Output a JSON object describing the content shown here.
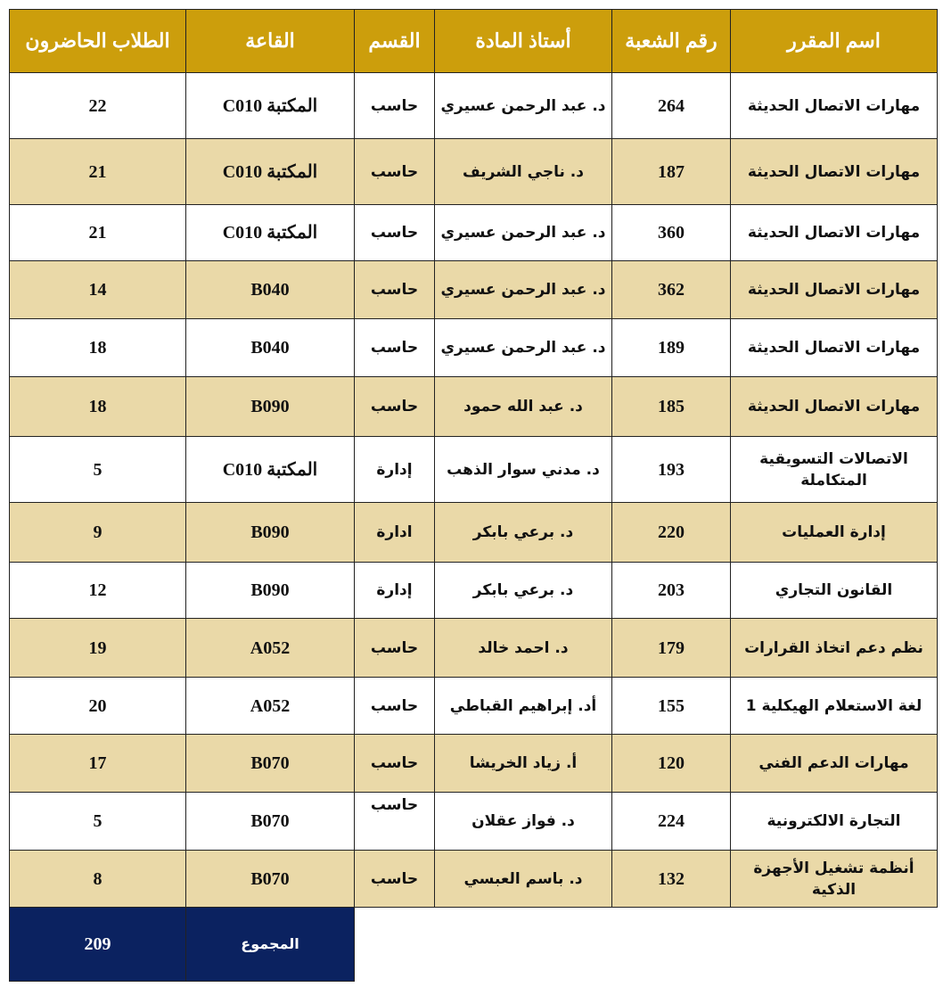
{
  "colors": {
    "header": "#CC9E0C",
    "alt_row": "#EAD9A8",
    "total": "#0B2260"
  },
  "headers": [
    "اسم المقرر",
    "رقم الشعبة",
    "أستاذ المادة",
    "القسم",
    "القاعة",
    "الطلاب الحاضرون"
  ],
  "rows": [
    {
      "course": "مهارات الاتصال الحديثة",
      "section": "264",
      "prof": "د. عبد الرحمن عسيري",
      "dept": "حاسب",
      "room": "المكتبة C010",
      "students": "22"
    },
    {
      "course": "مهارات الاتصال الحديثة",
      "section": "187",
      "prof": "د. ناجي الشريف",
      "dept": "حاسب",
      "room": "المكتبة C010",
      "students": "21"
    },
    {
      "course": "مهارات الاتصال الحديثة",
      "section": "360",
      "prof": "د. عبد الرحمن عسيري",
      "dept": "حاسب",
      "room": "المكتبة C010",
      "students": "21"
    },
    {
      "course": "مهارات الاتصال الحديثة",
      "section": "362",
      "prof": "د. عبد الرحمن عسيري",
      "dept": "حاسب",
      "room": "B040",
      "students": "14"
    },
    {
      "course": "مهارات الاتصال الحديثة",
      "section": "189",
      "prof": "د. عبد الرحمن عسيري",
      "dept": "حاسب",
      "room": "B040",
      "students": "18"
    },
    {
      "course": "مهارات الاتصال الحديثة",
      "section": "185",
      "prof": "د. عبد الله حمود",
      "dept": "حاسب",
      "room": "B090",
      "students": "18"
    },
    {
      "course": "الاتصالات التسويقية المتكاملة",
      "section": "193",
      "prof": "د. مدني سوار الذهب",
      "dept": "إدارة",
      "room": "المكتبة C010",
      "students": "5"
    },
    {
      "course": "إدارة العمليات",
      "section": "220",
      "prof": "د. برعي بابكر",
      "dept": "ادارة",
      "room": "B090",
      "students": "9"
    },
    {
      "course": "القانون التجاري",
      "section": "203",
      "prof": "د. برعي بابكر",
      "dept": "إدارة",
      "room": "B090",
      "students": "12"
    },
    {
      "course": "نظم دعم اتخاذ القرارات",
      "section": "179",
      "prof": "د. احمد خالد",
      "dept": "حاسب",
      "room": "A052",
      "students": "19"
    },
    {
      "course": "لغة الاستعلام الهيكلية 1",
      "section": "155",
      "prof": "أد. إبراهيم القباطي",
      "dept": "حاسب",
      "room": "A052",
      "students": "20"
    },
    {
      "course": "مهارات الدعم الفني",
      "section": "120",
      "prof": "أ. زياد الخريشا",
      "dept": "حاسب",
      "room": "B070",
      "students": "17"
    },
    {
      "course": "التجارة الالكترونية",
      "section": "224",
      "prof": "د. فواز عقلان",
      "dept": "حاسب",
      "room": "B070",
      "students": "5"
    },
    {
      "course": "أنظمة تشغيل الأجهزة الذكية",
      "section": "132",
      "prof": "د. باسم العبسي",
      "dept": "حاسب",
      "room": "B070",
      "students": "8"
    }
  ],
  "total": {
    "label": "المجموع",
    "value": "209"
  }
}
